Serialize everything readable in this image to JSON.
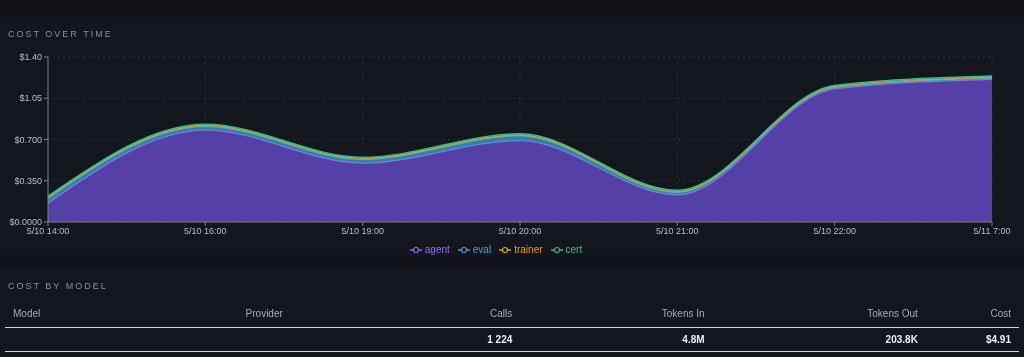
{
  "chart_data": [
    {
      "type": "area",
      "title": "COST OVER TIME",
      "stacked": true,
      "categories": [
        "5/10 14:00",
        "5/10 16:00",
        "5/10 19:00",
        "5/10 20:00",
        "5/10 21:00",
        "5/10 22:00",
        "5/11 7:00"
      ],
      "series": [
        {
          "name": "agent",
          "color": "#8b6cf0",
          "values": [
            0.16,
            0.78,
            0.5,
            0.69,
            0.23,
            1.13,
            1.21
          ]
        },
        {
          "name": "eval",
          "color": "#3aa6d8",
          "values": [
            0.04,
            0.03,
            0.03,
            0.04,
            0.02,
            0.01,
            0.01
          ]
        },
        {
          "name": "trainer",
          "color": "#e0a030",
          "values": [
            0.01,
            0.01,
            0.01,
            0.01,
            0.01,
            0.01,
            0.01
          ]
        },
        {
          "name": "cert",
          "color": "#2fc08a",
          "values": [
            0.01,
            0.01,
            0.01,
            0.01,
            0.01,
            0.01,
            0.01
          ]
        }
      ],
      "ylim": [
        0,
        1.4
      ],
      "yticks": [
        {
          "value": 0,
          "label": "$0.0000"
        },
        {
          "value": 0.35,
          "label": "$0.350"
        },
        {
          "value": 0.7,
          "label": "$0.700"
        },
        {
          "value": 1.05,
          "label": "$1.05"
        },
        {
          "value": 1.4,
          "label": "$1.40"
        }
      ],
      "grid": true,
      "legend": "bottom"
    },
    {
      "type": "other",
      "title": "COST BY MODEL",
      "annotations": [
        "Model",
        "Provider",
        "Calls",
        "Tokens In",
        "Tokens Out",
        "Cost",
        "1 224",
        "4.8M",
        "203.8K",
        "$4.91"
      ]
    }
  ]
}
